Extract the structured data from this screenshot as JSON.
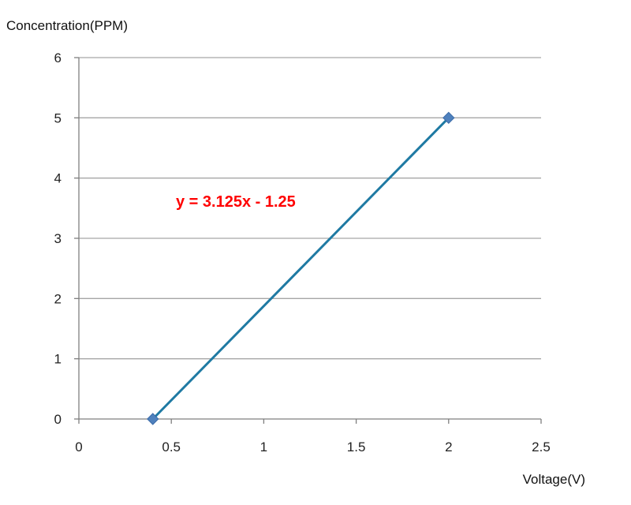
{
  "chart_data": {
    "type": "line",
    "ylabel": "Concentration(PPM)",
    "xlabel": "Voltage(V)",
    "xlim": [
      0,
      2.5
    ],
    "ylim": [
      0,
      6
    ],
    "x_ticks": [
      "0",
      "0.5",
      "1",
      "1.5",
      "2",
      "2.5"
    ],
    "y_ticks": [
      "0",
      "1",
      "2",
      "3",
      "4",
      "5",
      "6"
    ],
    "grid": "horizontal",
    "series": [
      {
        "x": [
          0.4,
          2
        ],
        "y": [
          0,
          5
        ],
        "marker": "diamond"
      }
    ],
    "annotation": "y = 3.125x - 1.25",
    "colors": {
      "line": "#1f7aa3",
      "marker": "#4f81bd",
      "annotation": "#ff0000",
      "grid": "#a6a6a6",
      "axis": "#7f7f7f"
    }
  }
}
